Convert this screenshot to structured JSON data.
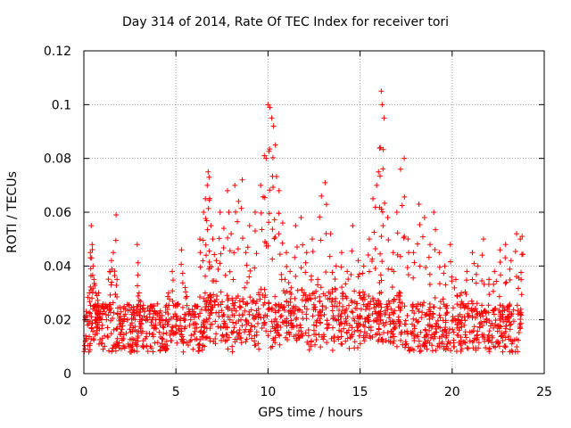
{
  "chart_data": {
    "type": "scatter",
    "title": "Day 314 of 2014, Rate Of TEC Index for receiver tori",
    "xlabel": "GPS time / hours",
    "ylabel": "ROTI / TECUs",
    "xlim": [
      0,
      25
    ],
    "ylim": [
      0,
      0.12
    ],
    "xticks": [
      "0",
      "5",
      "10",
      "15",
      "20",
      "25"
    ],
    "yticks": [
      "0",
      "0.02",
      "0.04",
      "0.06",
      "0.08",
      "0.1",
      "0.12"
    ],
    "grid": true,
    "marker": "plus",
    "color": "#ff0000",
    "series": [
      {
        "x": [
          0.1,
          0.3,
          0.35,
          0.4,
          0.45,
          0.5,
          0.55,
          0.6,
          0.65,
          0.7,
          0.8,
          1.0,
          1.2,
          1.4,
          1.5,
          1.6,
          1.75,
          1.8,
          2.0,
          2.3,
          2.6,
          2.9,
          3.0,
          3.1,
          3.4,
          3.7,
          3.9,
          4.2,
          4.5,
          4.6,
          4.8,
          5.0,
          5.1,
          5.3,
          5.5,
          5.8,
          6.1,
          6.3,
          6.5,
          6.6,
          6.7,
          6.75,
          6.8,
          6.9,
          7.0,
          7.2,
          7.4,
          7.6,
          7.8,
          8.0,
          8.2,
          8.4,
          8.6,
          8.8,
          9.0,
          9.3,
          9.6,
          9.8,
          9.9,
          10.0,
          10.1,
          10.2,
          10.3,
          10.4,
          10.6,
          10.8,
          11.0,
          11.2,
          11.5,
          11.8,
          12.1,
          12.4,
          12.7,
          12.9,
          13.1,
          13.4,
          13.7,
          14.0,
          14.3,
          14.6,
          14.9,
          15.2,
          15.5,
          15.7,
          15.9,
          16.0,
          16.1,
          16.15,
          16.2,
          16.3,
          16.5,
          16.8,
          17.0,
          17.2,
          17.4,
          17.6,
          17.9,
          18.2,
          18.5,
          18.8,
          19.0,
          19.3,
          19.6,
          19.9,
          20.2,
          20.5,
          20.8,
          21.1,
          21.4,
          21.7,
          22.0,
          22.3,
          22.6,
          22.9,
          23.2,
          23.5,
          23.7,
          23.8
        ],
        "y": [
          0.014,
          0.03,
          0.045,
          0.055,
          0.048,
          0.04,
          0.035,
          0.025,
          0.02,
          0.016,
          0.03,
          0.018,
          0.025,
          0.038,
          0.042,
          0.045,
          0.059,
          0.035,
          0.02,
          0.015,
          0.022,
          0.048,
          0.03,
          0.02,
          0.015,
          0.025,
          0.018,
          0.02,
          0.012,
          0.03,
          0.038,
          0.018,
          0.026,
          0.046,
          0.032,
          0.02,
          0.025,
          0.05,
          0.06,
          0.065,
          0.07,
          0.075,
          0.073,
          0.055,
          0.05,
          0.042,
          0.06,
          0.054,
          0.068,
          0.052,
          0.07,
          0.064,
          0.072,
          0.045,
          0.055,
          0.06,
          0.07,
          0.081,
          0.08,
          0.1,
          0.099,
          0.095,
          0.092,
          0.085,
          0.068,
          0.056,
          0.045,
          0.038,
          0.055,
          0.058,
          0.045,
          0.05,
          0.035,
          0.066,
          0.071,
          0.052,
          0.04,
          0.045,
          0.038,
          0.055,
          0.042,
          0.04,
          0.05,
          0.065,
          0.07,
          0.075,
          0.084,
          0.105,
          0.1,
          0.095,
          0.058,
          0.045,
          0.06,
          0.076,
          0.08,
          0.05,
          0.045,
          0.063,
          0.058,
          0.048,
          0.06,
          0.045,
          0.04,
          0.048,
          0.035,
          0.03,
          0.038,
          0.045,
          0.04,
          0.05,
          0.035,
          0.038,
          0.046,
          0.048,
          0.042,
          0.052,
          0.05,
          0.051
        ]
      }
    ]
  }
}
